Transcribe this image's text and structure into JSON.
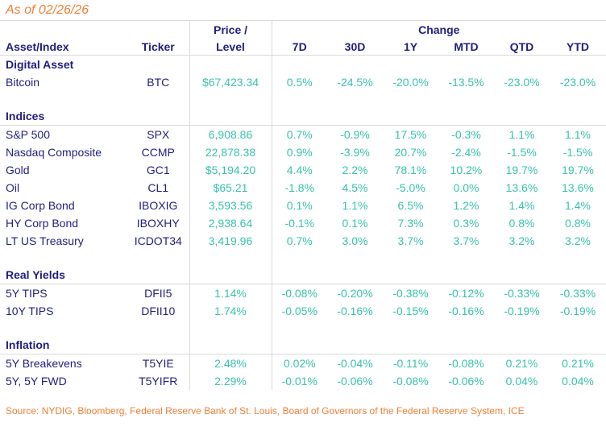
{
  "page": {
    "as_of": "As of 02/26/26",
    "source": "Source: NYDIG, Bloomberg, Federal Reserve Bank of St. Louis, Board of Governors of the Federal Reserve System, ICE"
  },
  "colors": {
    "navy": "#1F1E7E",
    "teal": "#38C3AD",
    "orange": "#EF8038",
    "grid": "#DADADA"
  },
  "chart_data": {
    "type": "table",
    "title": "As of 02/26/26",
    "header": {
      "asset": "Asset/Index",
      "ticker": "Ticker",
      "price_line1": "Price /",
      "price_line2": "Level",
      "change_group": "Change",
      "periods": [
        "7D",
        "30D",
        "1Y",
        "MTD",
        "QTD",
        "YTD"
      ]
    },
    "sections": [
      {
        "title": "Digital Asset",
        "rule_below_title": false,
        "rows": [
          {
            "name": "Bitcoin",
            "ticker": "BTC",
            "price": "$67,423.34",
            "changes": [
              "0.5%",
              "-24.5%",
              "-20.0%",
              "-13.5%",
              "-23.0%",
              "-23.0%"
            ]
          }
        ]
      },
      {
        "title": "Indices",
        "rule_below_title": true,
        "rows": [
          {
            "name": "S&P 500",
            "ticker": "SPX",
            "price": "6,908.86",
            "changes": [
              "0.7%",
              "-0.9%",
              "17.5%",
              "-0.3%",
              "1.1%",
              "1.1%"
            ]
          },
          {
            "name": "Nasdaq Composite",
            "ticker": "CCMP",
            "price": "22,878.38",
            "changes": [
              "0.9%",
              "-3.9%",
              "20.7%",
              "-2.4%",
              "-1.5%",
              "-1.5%"
            ]
          },
          {
            "name": "Gold",
            "ticker": "GC1",
            "price": "$5,194.20",
            "changes": [
              "4.4%",
              "2.2%",
              "78.1%",
              "10.2%",
              "19.7%",
              "19.7%"
            ]
          },
          {
            "name": "Oil",
            "ticker": "CL1",
            "price": "$65.21",
            "changes": [
              "-1.8%",
              "4.5%",
              "-5.0%",
              "0.0%",
              "13.6%",
              "13.6%"
            ]
          },
          {
            "name": "IG Corp Bond",
            "ticker": "IBOXIG",
            "price": "3,593.56",
            "changes": [
              "0.1%",
              "1.1%",
              "6.5%",
              "1.2%",
              "1.4%",
              "1.4%"
            ]
          },
          {
            "name": "HY Corp Bond",
            "ticker": "IBOXHY",
            "price": "2,938.64",
            "changes": [
              "-0.1%",
              "0.1%",
              "7.3%",
              "0.3%",
              "0.8%",
              "0.8%"
            ]
          },
          {
            "name": "LT US Treasury",
            "ticker": "ICDOT34",
            "price": "3,419.96",
            "changes": [
              "0.7%",
              "3.0%",
              "3.7%",
              "3.7%",
              "3.2%",
              "3.2%"
            ]
          }
        ]
      },
      {
        "title": "Real Yields",
        "rule_below_title": true,
        "rows": [
          {
            "name": "5Y TIPS",
            "ticker": "DFII5",
            "price": "1.14%",
            "changes": [
              "-0.08%",
              "-0.20%",
              "-0.38%",
              "-0.12%",
              "-0.33%",
              "-0.33%"
            ]
          },
          {
            "name": "10Y TIPS",
            "ticker": "DFII10",
            "price": "1.74%",
            "changes": [
              "-0.05%",
              "-0.16%",
              "-0.15%",
              "-0.16%",
              "-0.19%",
              "-0.19%"
            ]
          }
        ]
      },
      {
        "title": "Inflation",
        "rule_below_title": true,
        "rows": [
          {
            "name": "5Y Breakevens",
            "ticker": "T5YIE",
            "price": "2.48%",
            "changes": [
              "0.02%",
              "-0.04%",
              "-0.11%",
              "-0.08%",
              "0.21%",
              "0.21%"
            ]
          },
          {
            "name": "5Y, 5Y FWD",
            "ticker": "T5YIFR",
            "price": "2.29%",
            "changes": [
              "-0.01%",
              "-0.06%",
              "-0.08%",
              "-0.06%",
              "0.04%",
              "0.04%"
            ]
          }
        ]
      }
    ]
  }
}
